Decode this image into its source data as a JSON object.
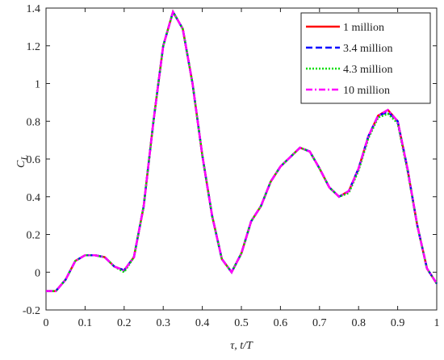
{
  "chart_data": {
    "type": "line",
    "xlabel": "τ, t/T",
    "ylabel": "C",
    "ylabel_subscript": "L",
    "x": [
      0,
      0.025,
      0.05,
      0.075,
      0.1,
      0.125,
      0.15,
      0.175,
      0.2,
      0.225,
      0.25,
      0.275,
      0.3,
      0.325,
      0.35,
      0.375,
      0.4,
      0.425,
      0.45,
      0.475,
      0.5,
      0.525,
      0.55,
      0.575,
      0.6,
      0.625,
      0.65,
      0.675,
      0.7,
      0.725,
      0.75,
      0.775,
      0.8,
      0.825,
      0.85,
      0.875,
      0.9,
      0.925,
      0.95,
      0.975,
      1.0
    ],
    "series": [
      {
        "name": "1 million",
        "color": "#ff0000",
        "dash": "solid",
        "values": [
          -0.1,
          -0.1,
          -0.04,
          0.06,
          0.09,
          0.09,
          0.08,
          0.03,
          0.01,
          0.08,
          0.35,
          0.8,
          1.2,
          1.38,
          1.29,
          1.0,
          0.62,
          0.3,
          0.07,
          0.0,
          0.1,
          0.27,
          0.35,
          0.48,
          0.56,
          0.61,
          0.66,
          0.64,
          0.55,
          0.45,
          0.4,
          0.43,
          0.55,
          0.72,
          0.83,
          0.86,
          0.8,
          0.55,
          0.25,
          0.02,
          -0.06
        ]
      },
      {
        "name": "3.4 million",
        "color": "#0000ff",
        "dash": "dashed",
        "values": [
          -0.1,
          -0.1,
          -0.04,
          0.06,
          0.09,
          0.09,
          0.08,
          0.03,
          0.01,
          0.08,
          0.35,
          0.8,
          1.2,
          1.38,
          1.29,
          1.0,
          0.62,
          0.3,
          0.07,
          0.0,
          0.1,
          0.27,
          0.35,
          0.48,
          0.56,
          0.61,
          0.66,
          0.64,
          0.55,
          0.45,
          0.4,
          0.43,
          0.55,
          0.72,
          0.83,
          0.85,
          0.8,
          0.55,
          0.25,
          0.02,
          -0.06
        ]
      },
      {
        "name": "4.3 million",
        "color": "#00dd00",
        "dash": "dotted",
        "values": [
          -0.1,
          -0.1,
          -0.04,
          0.06,
          0.09,
          0.09,
          0.08,
          0.03,
          0.0,
          0.08,
          0.35,
          0.8,
          1.2,
          1.38,
          1.29,
          1.0,
          0.62,
          0.3,
          0.07,
          0.0,
          0.1,
          0.27,
          0.35,
          0.48,
          0.56,
          0.61,
          0.66,
          0.64,
          0.55,
          0.45,
          0.4,
          0.42,
          0.54,
          0.71,
          0.82,
          0.84,
          0.79,
          0.54,
          0.25,
          0.02,
          -0.06
        ]
      },
      {
        "name": "10 million",
        "color": "#ff00ff",
        "dash": "dashdot",
        "values": [
          -0.1,
          -0.1,
          -0.04,
          0.06,
          0.09,
          0.09,
          0.08,
          0.03,
          0.01,
          0.08,
          0.35,
          0.8,
          1.2,
          1.38,
          1.29,
          1.0,
          0.62,
          0.3,
          0.07,
          0.0,
          0.1,
          0.27,
          0.35,
          0.48,
          0.56,
          0.61,
          0.66,
          0.64,
          0.55,
          0.45,
          0.4,
          0.43,
          0.55,
          0.72,
          0.83,
          0.86,
          0.8,
          0.55,
          0.25,
          0.02,
          -0.06
        ]
      }
    ],
    "xlim": [
      0,
      1
    ],
    "xticks": [
      0,
      0.1,
      0.2,
      0.3,
      0.4,
      0.5,
      0.6,
      0.7,
      0.8,
      0.9,
      1
    ],
    "ylim": [
      -0.2,
      1.4
    ],
    "yticks": [
      -0.2,
      0,
      0.2,
      0.4,
      0.6,
      0.8,
      1,
      1.2,
      1.4
    ],
    "legend": "upper right",
    "grid": false
  }
}
